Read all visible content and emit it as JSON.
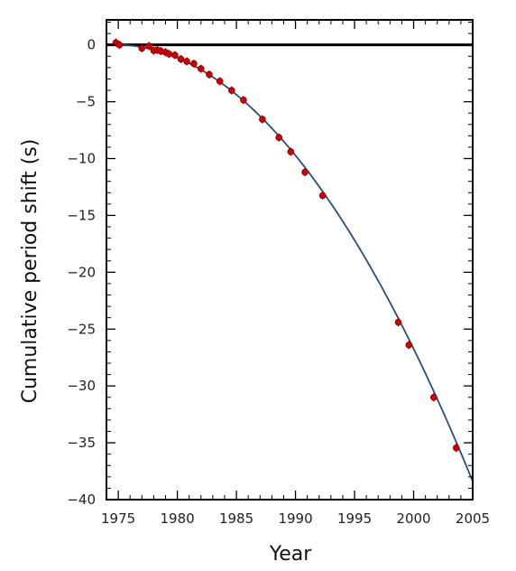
{
  "chart_data": {
    "type": "scatter",
    "title": "",
    "xlabel": "Year",
    "ylabel": "Cumulative period shift (s)",
    "xlim": [
      1974,
      2005
    ],
    "ylim": [
      -40,
      2.2
    ],
    "xticks": [
      1975,
      1980,
      1985,
      1990,
      1995,
      2000,
      2005
    ],
    "yticks": [
      0,
      -5,
      -10,
      -15,
      -20,
      -25,
      -30,
      -35,
      -40
    ],
    "grid": false,
    "legend": "none",
    "series": [
      {
        "kind": "points",
        "color": "#cc0000",
        "x": [
          1974.8,
          1975.1,
          1977.0,
          1977.6,
          1978.0,
          1978.3,
          1978.6,
          1979.0,
          1979.3,
          1979.8,
          1980.3,
          1980.8,
          1981.4,
          1982.0,
          1982.7,
          1983.6,
          1984.6,
          1985.6,
          1987.2,
          1988.6,
          1989.6,
          1990.8,
          1992.3,
          1998.7,
          1999.6,
          2001.7,
          2003.6
        ],
        "y": [
          0.2,
          0.0,
          -0.3,
          -0.1,
          -0.5,
          -0.45,
          -0.55,
          -0.65,
          -0.8,
          -0.9,
          -1.25,
          -1.45,
          -1.65,
          -2.1,
          -2.6,
          -3.2,
          -4.0,
          -4.85,
          -6.55,
          -8.15,
          -9.4,
          -11.2,
          -13.25,
          -24.4,
          -26.4,
          -31.0,
          -35.45
        ]
      },
      {
        "kind": "curve",
        "color": "#2b4c7e",
        "x0": 1974.8,
        "y0": 0,
        "coef": -0.0421,
        "x_end": 2005
      }
    ],
    "reference_line": {
      "y": 0,
      "color": "#000000"
    }
  }
}
